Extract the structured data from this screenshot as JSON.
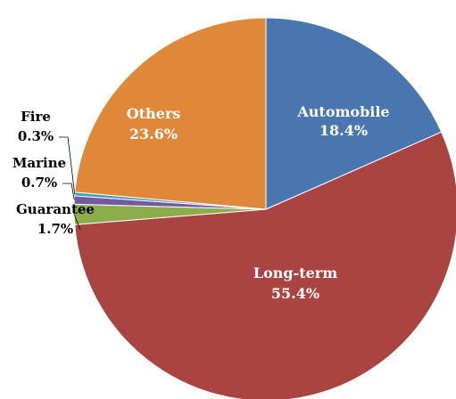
{
  "chart_data": {
    "type": "pie",
    "title": "",
    "start_angle_deg": 0,
    "direction": "clockwise",
    "slices": [
      {
        "name": "Automobile",
        "pct_label": "18.4%",
        "value": 18.4,
        "color": "#4a76b0",
        "label_color": "#ffffff"
      },
      {
        "name": "Long-term",
        "pct_label": "55.4%",
        "value": 55.4,
        "color": "#aa4442",
        "label_color": "#ffffff"
      },
      {
        "name": "Guarantee",
        "pct_label": "1.7%",
        "value": 1.7,
        "color": "#8cad4b",
        "label_color": "#000000"
      },
      {
        "name": "Marine",
        "pct_label": "0.7%",
        "value": 0.7,
        "color": "#7559a0",
        "label_color": "#000000"
      },
      {
        "name": "Fire",
        "pct_label": "0.3%",
        "value": 0.3,
        "color": "#3f9fb8",
        "label_color": "#000000"
      },
      {
        "name": "Others",
        "pct_label": "23.6%",
        "value": 23.6,
        "color": "#e0883a",
        "label_color": "#ffffff"
      }
    ]
  }
}
